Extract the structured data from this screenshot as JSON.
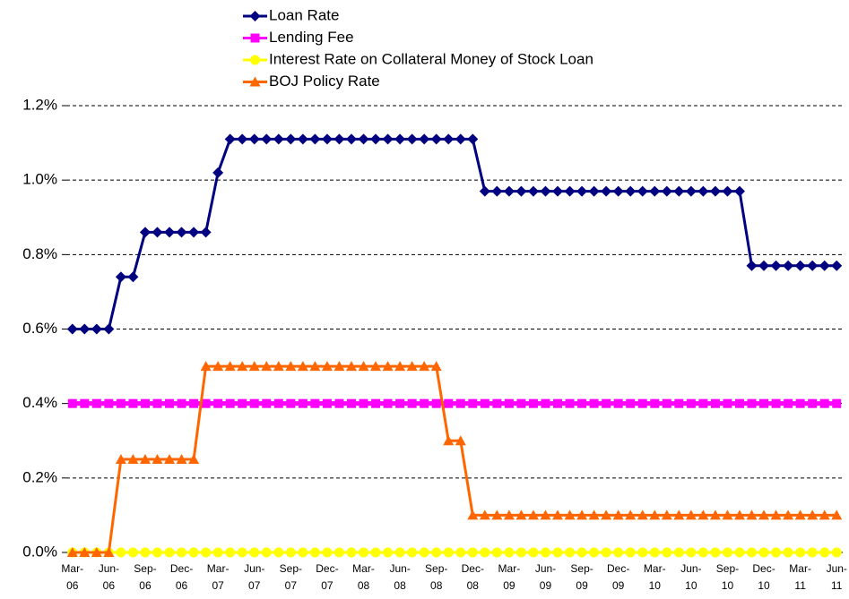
{
  "chart_data": {
    "type": "line",
    "categories": [
      "Mar-06",
      null,
      null,
      "Jun-06",
      null,
      null,
      "Sep-06",
      null,
      null,
      "Dec-06",
      null,
      null,
      "Mar-07",
      null,
      null,
      "Jun-07",
      null,
      null,
      "Sep-07",
      null,
      null,
      "Dec-07",
      null,
      null,
      "Mar-08",
      null,
      null,
      "Jun-08",
      null,
      null,
      "Sep-08",
      null,
      null,
      "Dec-08",
      null,
      null,
      "Mar-09",
      null,
      null,
      "Jun-09",
      null,
      null,
      "Sep-09",
      null,
      null,
      "Dec-09",
      null,
      null,
      "Mar-10",
      null,
      null,
      "Jun-10",
      null,
      null,
      "Sep-10",
      null,
      null,
      "Dec-10",
      null,
      null,
      "Mar-11",
      null,
      null,
      "Jun-11"
    ],
    "series": [
      {
        "name": "Loan Rate",
        "color": "#000080",
        "marker": "diamond",
        "values": [
          0.6,
          0.6,
          0.6,
          0.6,
          0.74,
          0.74,
          0.86,
          0.86,
          0.86,
          0.86,
          0.86,
          0.86,
          1.02,
          1.11,
          1.11,
          1.11,
          1.11,
          1.11,
          1.11,
          1.11,
          1.11,
          1.11,
          1.11,
          1.11,
          1.11,
          1.11,
          1.11,
          1.11,
          1.11,
          1.11,
          1.11,
          1.11,
          1.11,
          1.11,
          0.97,
          0.97,
          0.97,
          0.97,
          0.97,
          0.97,
          0.97,
          0.97,
          0.97,
          0.97,
          0.97,
          0.97,
          0.97,
          0.97,
          0.97,
          0.97,
          0.97,
          0.97,
          0.97,
          0.97,
          0.97,
          0.97,
          0.77,
          0.77,
          0.77,
          0.77,
          0.77,
          0.77,
          0.77,
          0.77
        ]
      },
      {
        "name": "Lending Fee",
        "color": "#ff00ff",
        "marker": "square",
        "values": [
          0.4,
          0.4,
          0.4,
          0.4,
          0.4,
          0.4,
          0.4,
          0.4,
          0.4,
          0.4,
          0.4,
          0.4,
          0.4,
          0.4,
          0.4,
          0.4,
          0.4,
          0.4,
          0.4,
          0.4,
          0.4,
          0.4,
          0.4,
          0.4,
          0.4,
          0.4,
          0.4,
          0.4,
          0.4,
          0.4,
          0.4,
          0.4,
          0.4,
          0.4,
          0.4,
          0.4,
          0.4,
          0.4,
          0.4,
          0.4,
          0.4,
          0.4,
          0.4,
          0.4,
          0.4,
          0.4,
          0.4,
          0.4,
          0.4,
          0.4,
          0.4,
          0.4,
          0.4,
          0.4,
          0.4,
          0.4,
          0.4,
          0.4,
          0.4,
          0.4,
          0.4,
          0.4,
          0.4,
          0.4
        ]
      },
      {
        "name": "Interest Rate on Collateral Money of Stock Loan",
        "color": "#ffff00",
        "marker": "circle",
        "values": [
          0,
          0,
          0,
          0,
          0,
          0,
          0,
          0,
          0,
          0,
          0,
          0,
          0,
          0,
          0,
          0,
          0,
          0,
          0,
          0,
          0,
          0,
          0,
          0,
          0,
          0,
          0,
          0,
          0,
          0,
          0,
          0,
          0,
          0,
          0,
          0,
          0,
          0,
          0,
          0,
          0,
          0,
          0,
          0,
          0,
          0,
          0,
          0,
          0,
          0,
          0,
          0,
          0,
          0,
          0,
          0,
          0,
          0,
          0,
          0,
          0,
          0,
          0,
          0
        ]
      },
      {
        "name": "BOJ Policy Rate",
        "color": "#ff6600",
        "marker": "triangle",
        "values": [
          0,
          0,
          0,
          0,
          0.25,
          0.25,
          0.25,
          0.25,
          0.25,
          0.25,
          0.25,
          0.5,
          0.5,
          0.5,
          0.5,
          0.5,
          0.5,
          0.5,
          0.5,
          0.5,
          0.5,
          0.5,
          0.5,
          0.5,
          0.5,
          0.5,
          0.5,
          0.5,
          0.5,
          0.5,
          0.5,
          0.3,
          0.3,
          0.1,
          0.1,
          0.1,
          0.1,
          0.1,
          0.1,
          0.1,
          0.1,
          0.1,
          0.1,
          0.1,
          0.1,
          0.1,
          0.1,
          0.1,
          0.1,
          0.1,
          0.1,
          0.1,
          0.1,
          0.1,
          0.1,
          0.1,
          0.1,
          0.1,
          0.1,
          0.1,
          0.1,
          0.1,
          0.1,
          0.1
        ]
      }
    ],
    "ylim": [
      0,
      1.2
    ],
    "yticks": [
      {
        "value": 0,
        "label": "0.0%"
      },
      {
        "value": 0.2,
        "label": "0.2%"
      },
      {
        "value": 0.4,
        "label": "0.4%"
      },
      {
        "value": 0.6,
        "label": "0.6%"
      },
      {
        "value": 0.8,
        "label": "0.8%"
      },
      {
        "value": 1.0,
        "label": "1.0%"
      },
      {
        "value": 1.2,
        "label": "1.2%"
      }
    ],
    "grid": true,
    "legend": "top"
  }
}
